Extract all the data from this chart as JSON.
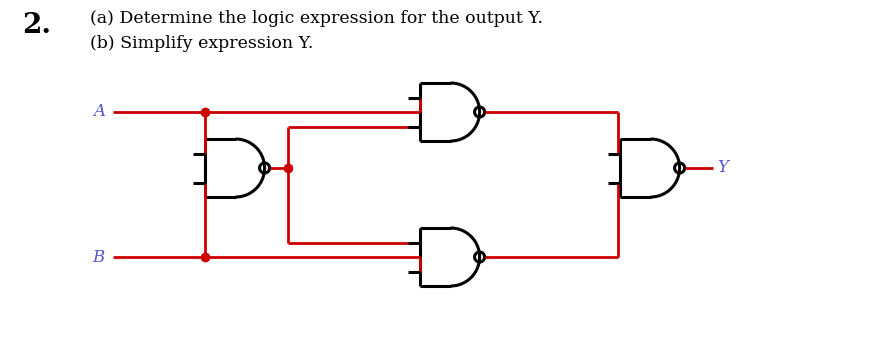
{
  "title_number": "2.",
  "line1": "(a) Determine the ​logic expression for the output Y.",
  "line2": "(b) Simplify expression Y.",
  "bg_color": "#ffffff",
  "wire_color": "#cc0000",
  "gate_edge_color": "#000000",
  "label_color": "#5555cc",
  "text_color": "#000000",
  "A_label": "A",
  "B_label": "B",
  "Y_label": "Y",
  "fig_width": 8.86,
  "fig_height": 3.6,
  "dpi": 100
}
